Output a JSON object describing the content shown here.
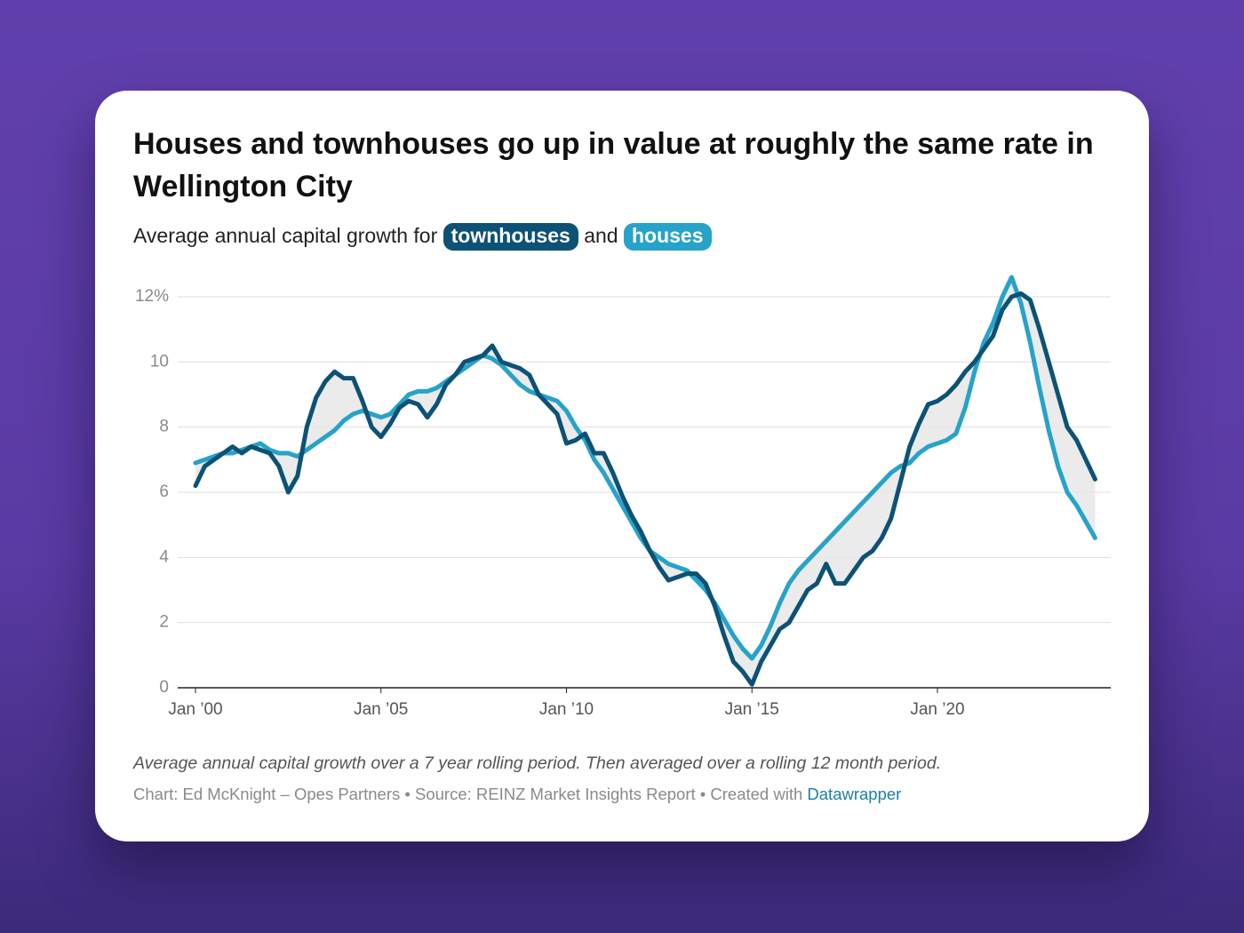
{
  "chart_data": {
    "type": "line",
    "title": "Houses and townhouses go up in value at roughly the same rate in Wellington City",
    "subtitle_parts": [
      "Average annual capital growth for",
      "and"
    ],
    "notes": "Average annual capital growth over a 7 year rolling period. Then averaged over a rolling 12 month period.",
    "credit": "Chart: Ed McKnight – Opes Partners • Source: REINZ Market Insights Report • Created with",
    "credit_link": "Datawrapper",
    "x": [
      "2000-01",
      "2000-04",
      "2000-07",
      "2000-10",
      "2001-01",
      "2001-04",
      "2001-07",
      "2001-10",
      "2002-01",
      "2002-04",
      "2002-07",
      "2002-10",
      "2003-01",
      "2003-04",
      "2003-07",
      "2003-10",
      "2004-01",
      "2004-04",
      "2004-07",
      "2004-10",
      "2005-01",
      "2005-04",
      "2005-07",
      "2005-10",
      "2006-01",
      "2006-04",
      "2006-07",
      "2006-10",
      "2007-01",
      "2007-04",
      "2007-07",
      "2007-10",
      "2008-01",
      "2008-04",
      "2008-07",
      "2008-10",
      "2009-01",
      "2009-04",
      "2009-07",
      "2009-10",
      "2010-01",
      "2010-04",
      "2010-07",
      "2010-10",
      "2011-01",
      "2011-04",
      "2011-07",
      "2011-10",
      "2012-01",
      "2012-04",
      "2012-07",
      "2012-10",
      "2013-01",
      "2013-04",
      "2013-07",
      "2013-10",
      "2014-01",
      "2014-04",
      "2014-07",
      "2014-10",
      "2015-01",
      "2015-04",
      "2015-07",
      "2015-10",
      "2016-01",
      "2016-04",
      "2016-07",
      "2016-10",
      "2017-01",
      "2017-04",
      "2017-07",
      "2017-10",
      "2018-01",
      "2018-04",
      "2018-07",
      "2018-10",
      "2019-01",
      "2019-04",
      "2019-07",
      "2019-10",
      "2020-01",
      "2020-04",
      "2020-07",
      "2020-10",
      "2021-01",
      "2021-04",
      "2021-07",
      "2021-10",
      "2022-01",
      "2022-04",
      "2022-07",
      "2022-10",
      "2023-01",
      "2023-04",
      "2023-07",
      "2023-10",
      "2024-01",
      "2024-04"
    ],
    "series": [
      {
        "name": "townhouses",
        "color": "#0d5275",
        "values": [
          6.2,
          6.8,
          7.0,
          7.2,
          7.4,
          7.2,
          7.4,
          7.3,
          7.2,
          6.8,
          6.0,
          6.5,
          8.0,
          8.9,
          9.4,
          9.7,
          9.5,
          9.5,
          8.8,
          8.0,
          7.7,
          8.1,
          8.6,
          8.8,
          8.7,
          8.3,
          8.7,
          9.3,
          9.6,
          10.0,
          10.1,
          10.2,
          10.5,
          10.0,
          9.9,
          9.8,
          9.6,
          9.0,
          8.7,
          8.4,
          7.5,
          7.6,
          7.8,
          7.2,
          7.2,
          6.6,
          5.9,
          5.3,
          4.8,
          4.2,
          3.7,
          3.3,
          3.4,
          3.5,
          3.5,
          3.2,
          2.5,
          1.6,
          0.8,
          0.5,
          0.1,
          0.8,
          1.3,
          1.8,
          2.0,
          2.5,
          3.0,
          3.2,
          3.8,
          3.2,
          3.2,
          3.6,
          4.0,
          4.2,
          4.6,
          5.2,
          6.3,
          7.4,
          8.1,
          8.7,
          8.8,
          9.0,
          9.3,
          9.7,
          10.0,
          10.4,
          10.8,
          11.6,
          12.0,
          12.1,
          11.9,
          11.0,
          10.0,
          9.0,
          8.0,
          7.6,
          7.0,
          6.4
        ]
      },
      {
        "name": "houses",
        "color": "#27a3c9",
        "values": [
          6.9,
          7.0,
          7.1,
          7.2,
          7.2,
          7.3,
          7.4,
          7.5,
          7.3,
          7.2,
          7.2,
          7.1,
          7.3,
          7.5,
          7.7,
          7.9,
          8.2,
          8.4,
          8.5,
          8.4,
          8.3,
          8.4,
          8.7,
          9.0,
          9.1,
          9.1,
          9.2,
          9.4,
          9.6,
          9.8,
          10.0,
          10.2,
          10.1,
          9.9,
          9.6,
          9.3,
          9.1,
          9.0,
          8.9,
          8.8,
          8.5,
          8.0,
          7.6,
          7.0,
          6.6,
          6.1,
          5.6,
          5.1,
          4.6,
          4.2,
          4.0,
          3.8,
          3.7,
          3.6,
          3.3,
          3.0,
          2.6,
          2.1,
          1.6,
          1.2,
          0.9,
          1.3,
          1.9,
          2.6,
          3.2,
          3.6,
          3.9,
          4.2,
          4.5,
          4.8,
          5.1,
          5.4,
          5.7,
          6.0,
          6.3,
          6.6,
          6.8,
          6.9,
          7.2,
          7.4,
          7.5,
          7.6,
          7.8,
          8.6,
          9.7,
          10.6,
          11.2,
          12.0,
          12.6,
          11.8,
          10.6,
          9.2,
          7.9,
          6.8,
          6.0,
          5.6,
          5.1,
          4.6
        ]
      }
    ],
    "xticks": [
      {
        "value": "2000-01",
        "label": "Jan ’00"
      },
      {
        "value": "2005-01",
        "label": "Jan ’05"
      },
      {
        "value": "2010-01",
        "label": "Jan ’10"
      },
      {
        "value": "2015-01",
        "label": "Jan ’15"
      },
      {
        "value": "2020-01",
        "label": "Jan ’20"
      }
    ],
    "ylim": [
      0,
      12
    ],
    "yticks": [
      0,
      2,
      4,
      6,
      8,
      10,
      {
        "value": 12,
        "label": "12%"
      }
    ],
    "grid": true,
    "fill_between": true
  }
}
